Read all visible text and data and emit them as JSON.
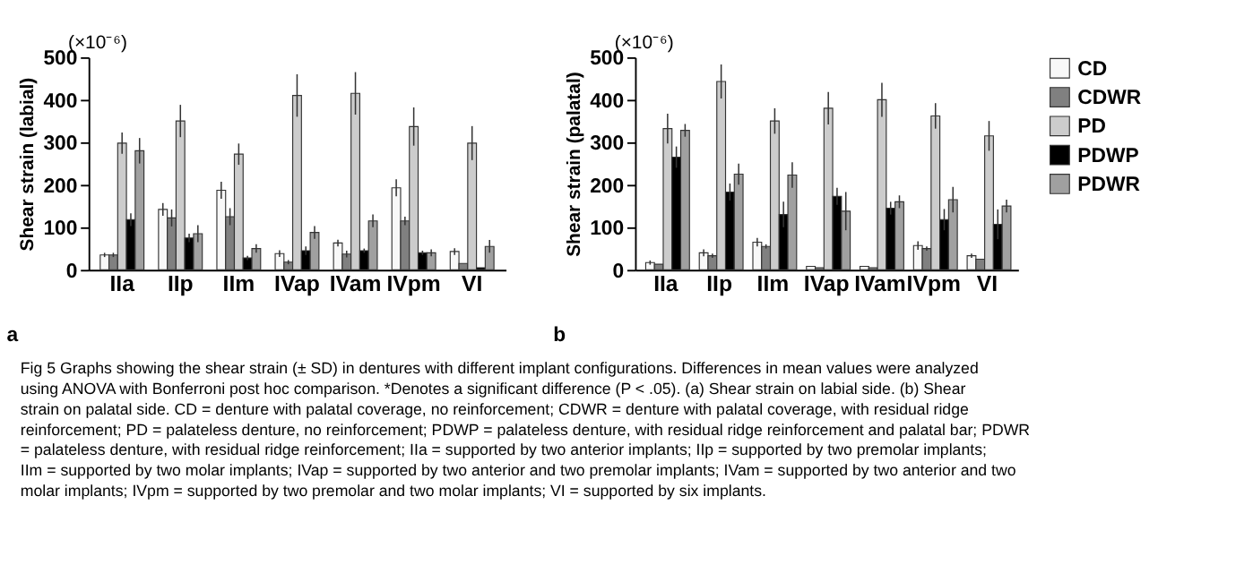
{
  "chart_data": [
    {
      "type": "bar",
      "ylabel": "Shear strain (labial)",
      "categories": [
        "IIa",
        "IIp",
        "IIm",
        "IVap",
        "IVam",
        "IVpm",
        "VI"
      ],
      "series": [
        {
          "color": "#f8f8f8",
          "values": [
            35,
            142,
            187,
            38,
            63,
            193,
            43
          ],
          "errors": [
            5,
            15,
            20,
            8,
            8,
            20,
            8
          ]
        },
        {
          "color": "#808080",
          "values": [
            35,
            122,
            125,
            18,
            37,
            115,
            15
          ],
          "errors": [
            5,
            20,
            20,
            5,
            8,
            10,
            null
          ]
        },
        {
          "color": "#cccccc",
          "values": [
            298,
            350,
            272,
            410,
            415,
            337,
            298
          ],
          "errors": [
            25,
            38,
            25,
            50,
            50,
            45,
            40
          ]
        },
        {
          "color": "#000000",
          "values": [
            118,
            75,
            28,
            45,
            45,
            40,
            5
          ],
          "errors": [
            15,
            10,
            5,
            10,
            5,
            5,
            null
          ]
        },
        {
          "color": "#a0a0a0",
          "values": [
            280,
            85,
            50,
            88,
            115,
            40,
            55
          ],
          "errors": [
            30,
            20,
            10,
            15,
            15,
            8,
            15
          ]
        }
      ],
      "ylim": [
        0,
        500
      ],
      "yticks": [
        0,
        100,
        200,
        300,
        400,
        500
      ],
      "grid": false,
      "legend": false,
      "annotations": [
        "a",
        "(×10⁻⁶)",
        "Fig 5  Graphs showing the shear strain (± SD) in dentures with different implant configurations. Differences in mean values were analyzed using ANOVA with Bonferroni post hoc comparison. *Denotes a significant difference (P < .05). (a) Shear strain on labial side. (b) Shear strain on palatal side. CD = denture with palatal coverage, no reinforcement; CDWR = denture with palatal coverage, with residual ridge reinforcement; PD = palateless denture, no reinforcement; PDWP = palateless denture, with residual ridge reinforcement and palatal bar; PDWR = palateless denture, with residual ridge reinforcement; IIa = supported by two anterior implants; IIp = supported by two premolar implants; IIm = supported by two molar implants; IVap = supported by two anterior and two premolar implants; IVam = supported by two anterior and two molar implants; IVpm = supported by two premolar and two molar implants; VI = supported by six implants."
      ]
    },
    {
      "type": "bar",
      "ylabel": "Shear strain (palatal)",
      "categories": [
        "IIa",
        "IIp",
        "IIm",
        "IVap",
        "IVam",
        "IVpm",
        "VI"
      ],
      "series": [
        {
          "name": "CD",
          "color": "#f8f8f8",
          "values": [
            17,
            40,
            65,
            8,
            8,
            57,
            33
          ],
          "errors": [
            5,
            8,
            10,
            null,
            null,
            10,
            5
          ]
        },
        {
          "name": "CDWR",
          "color": "#808080",
          "values": [
            13,
            33,
            55,
            5,
            5,
            50,
            25
          ],
          "errors": [
            null,
            5,
            5,
            null,
            null,
            5,
            null
          ]
        },
        {
          "name": "PD",
          "color": "#cccccc",
          "values": [
            332,
            443,
            350,
            380,
            400,
            362,
            315
          ],
          "errors": [
            35,
            40,
            30,
            38,
            40,
            30,
            35
          ]
        },
        {
          "name": "PDWP",
          "color": "#000000",
          "values": [
            265,
            183,
            130,
            173,
            145,
            118,
            107
          ],
          "errors": [
            25,
            20,
            30,
            20,
            15,
            25,
            35
          ]
        },
        {
          "name": "PDWR",
          "color": "#a0a0a0",
          "values": [
            328,
            225,
            223,
            138,
            160,
            165,
            150
          ],
          "errors": [
            15,
            25,
            30,
            45,
            15,
            30,
            15
          ]
        }
      ],
      "ylim": [
        0,
        500
      ],
      "yticks": [
        0,
        100,
        200,
        300,
        400,
        500
      ],
      "grid": false,
      "legend": "right",
      "annotations": [
        "b",
        "(×10⁻⁶)"
      ]
    }
  ]
}
